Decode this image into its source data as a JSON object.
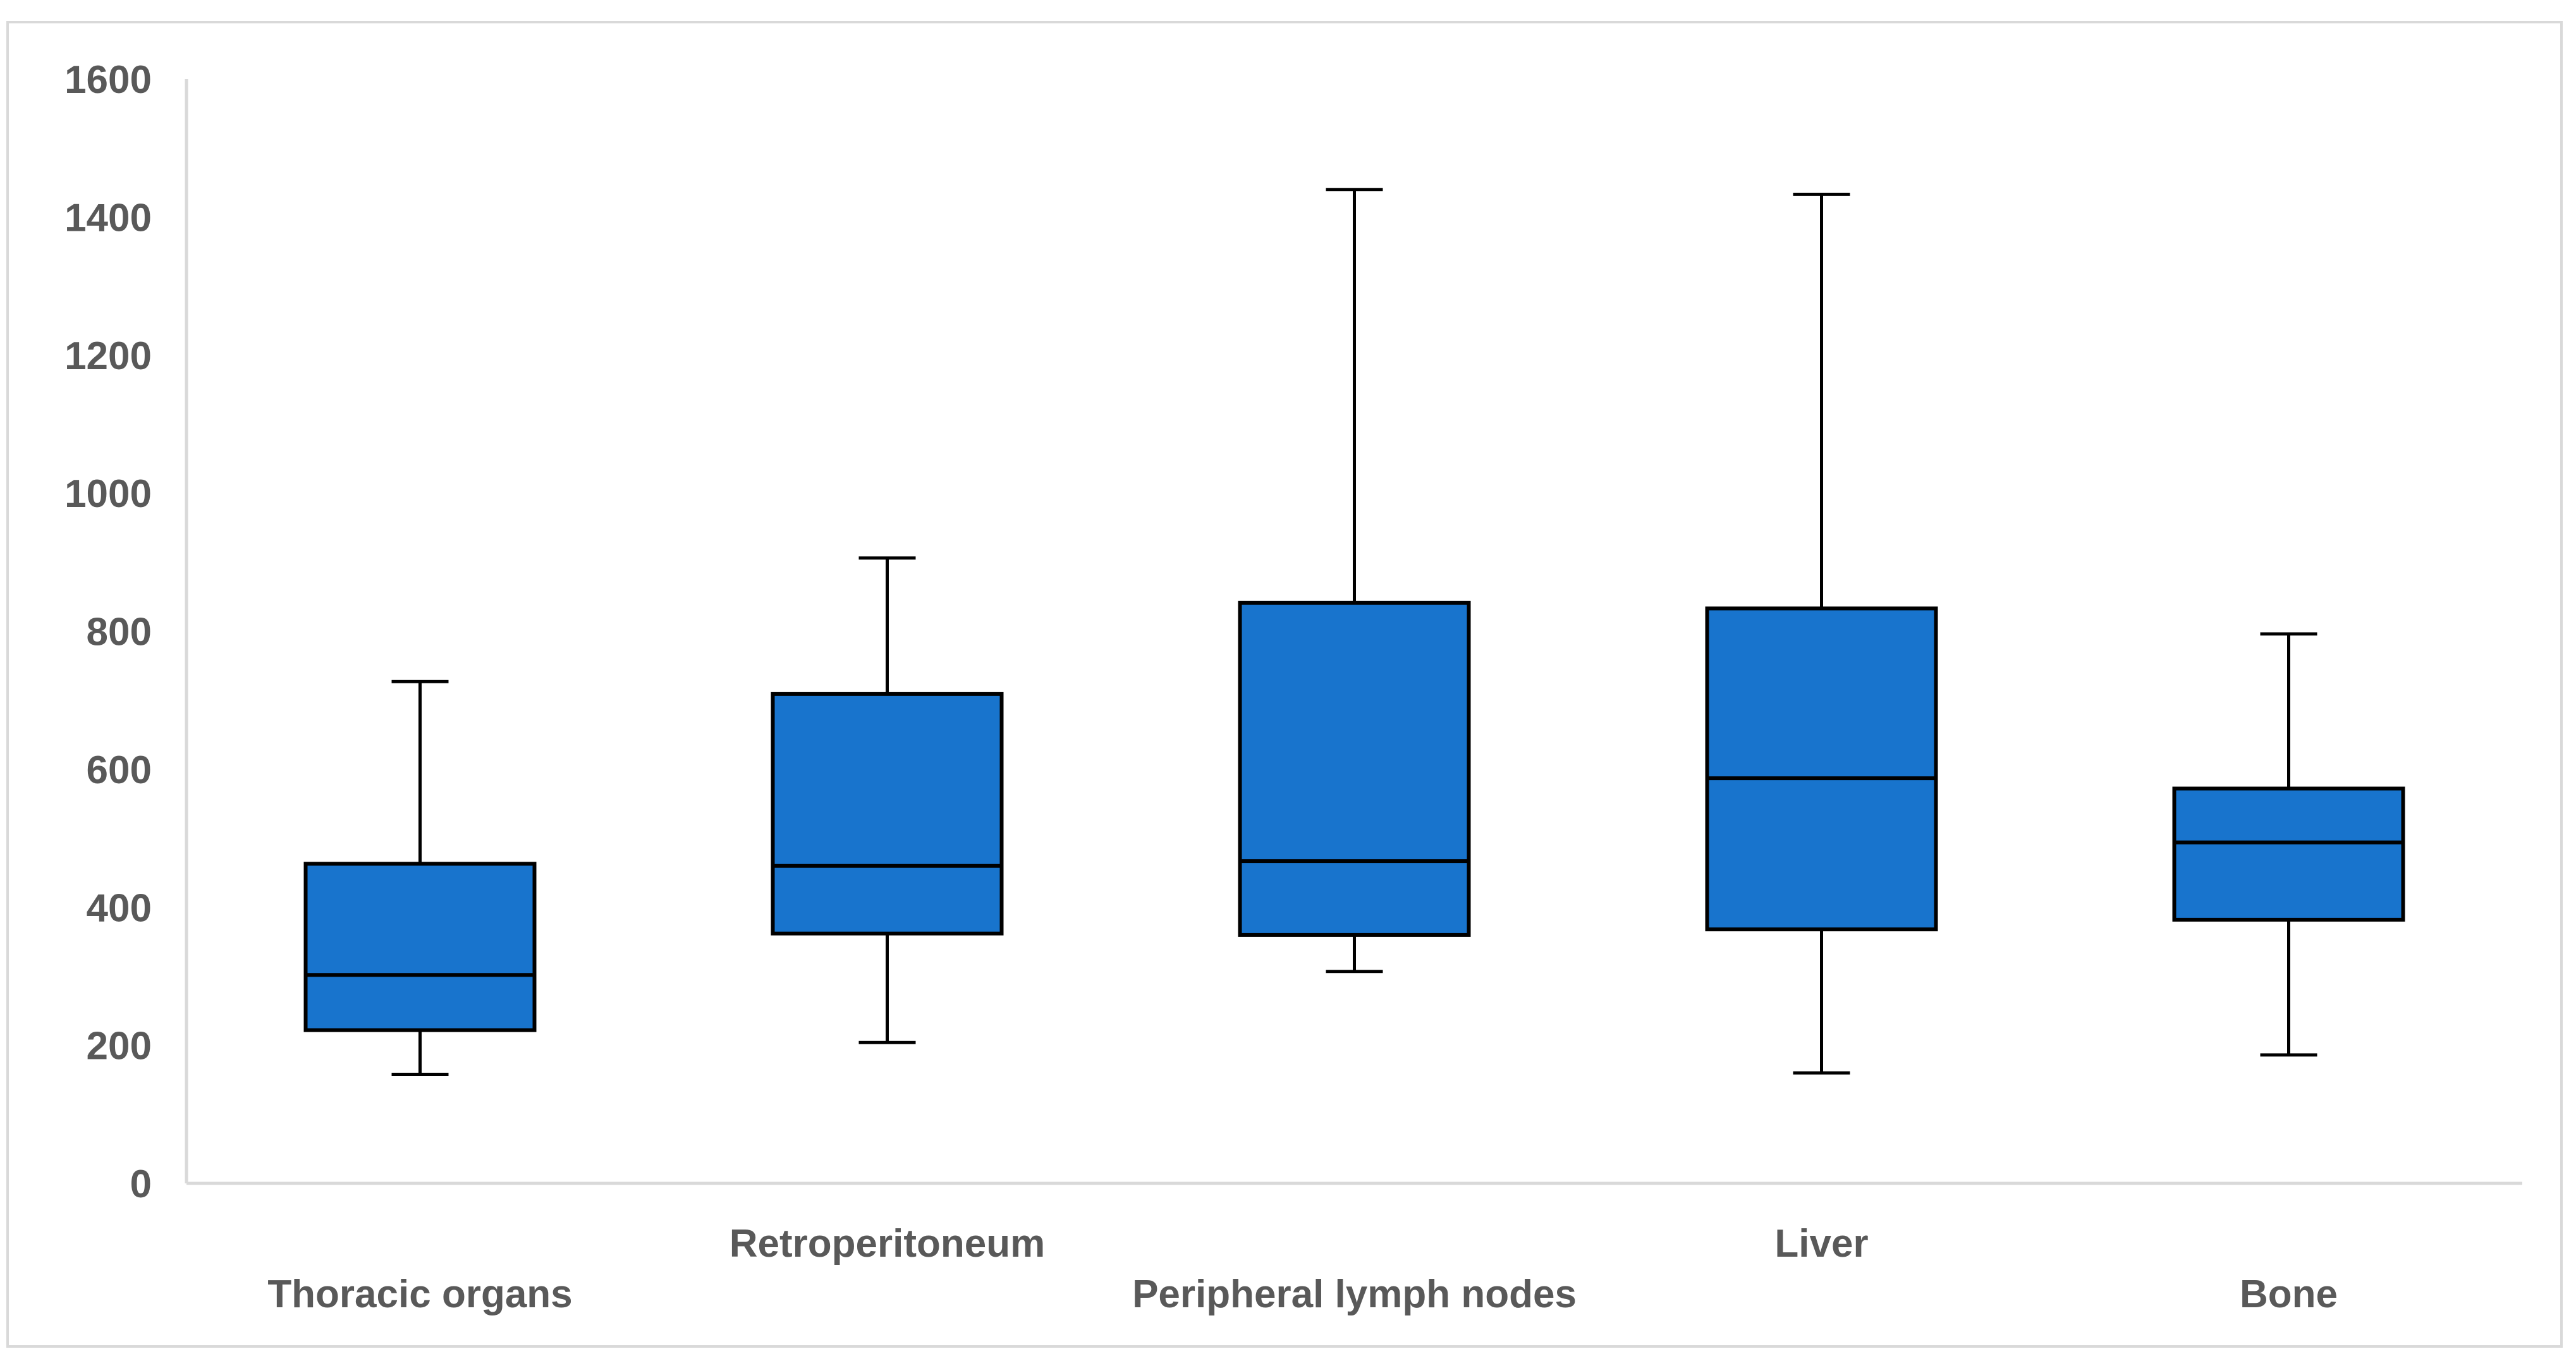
{
  "chart_data": {
    "type": "boxplot",
    "title": "",
    "xlabel": "",
    "ylabel": "",
    "ylim": [
      0,
      1600
    ],
    "y_ticks": [
      "0",
      "200",
      "400",
      "600",
      "800",
      "1000",
      "1200",
      "1400",
      "1600"
    ],
    "grid": false,
    "legend": "none",
    "box_color": "#1874CD",
    "line_color": "#000000",
    "axis_color": "#D9D9D9",
    "label_color": "#595959",
    "categories": [
      "Thoracic organs",
      "Retroperitoneum",
      "Peripheral lymph nodes",
      "Liver",
      "Bone"
    ],
    "label_rows": [
      "lower",
      "upper",
      "lower",
      "upper",
      "lower"
    ],
    "boxes": [
      {
        "category": "Thoracic organs",
        "min": 158,
        "q1": 222,
        "median": 302,
        "q3": 463,
        "max": 727
      },
      {
        "category": "Retroperitoneum",
        "min": 204,
        "q1": 362,
        "median": 460,
        "q3": 709,
        "max": 906
      },
      {
        "category": "Peripheral lymph nodes",
        "min": 307,
        "q1": 360,
        "median": 467,
        "q3": 841,
        "max": 1440
      },
      {
        "category": "Liver",
        "min": 160,
        "q1": 368,
        "median": 587,
        "q3": 833,
        "max": 1433
      },
      {
        "category": "Bone",
        "min": 186,
        "q1": 382,
        "median": 494,
        "q3": 572,
        "max": 796
      }
    ]
  }
}
